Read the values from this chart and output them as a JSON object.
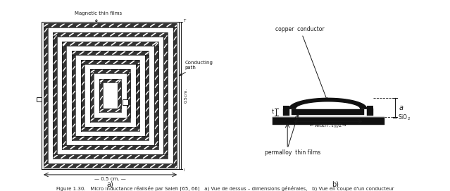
{
  "fig_width": 6.39,
  "fig_height": 2.71,
  "dpi": 100,
  "line_color": "#1a1a1a",
  "label_a": "a)",
  "label_b": "b)",
  "text_magnetic": "Magnetic thin films",
  "text_conducting": "Conducting\npath",
  "text_05cm_right": "0.5cm.",
  "text_copper": "copper  conductor",
  "text_permalloy": "permalloy  thin films",
  "text_sio2": "SiO₂",
  "text_a_dim": "a"
}
